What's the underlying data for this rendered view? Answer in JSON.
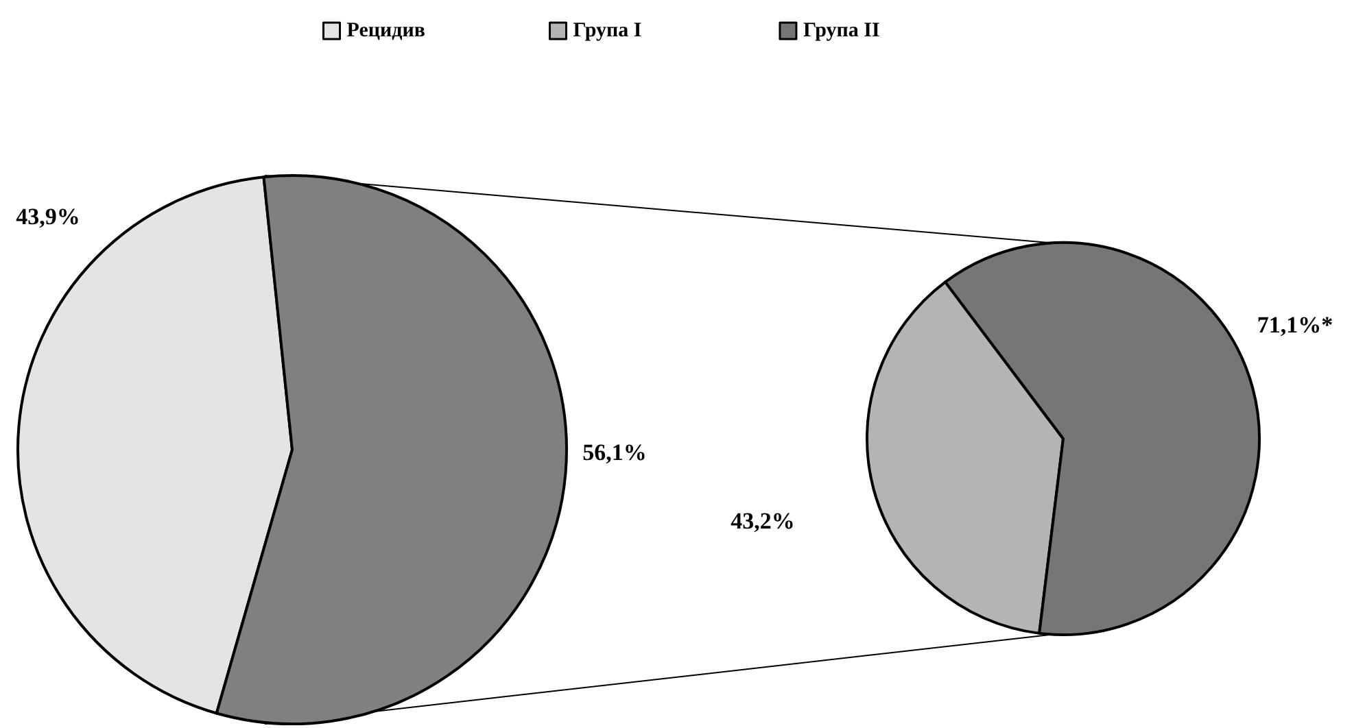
{
  "chart_data": [
    {
      "type": "pie",
      "categories": [
        "Рецидив",
        null
      ],
      "values": [
        43.9,
        56.1
      ],
      "colors": [
        "#e4e4e4",
        "#808080"
      ],
      "value_labels": [
        "43,9%",
        "56,1%"
      ],
      "legend": "top"
    },
    {
      "type": "pie",
      "categories": [
        "Група I",
        "Група II"
      ],
      "values": [
        43.2,
        71.1
      ],
      "colors": [
        "#b4b4b4",
        "#767676"
      ],
      "value_labels": [
        "43,2%",
        "71,1%*"
      ],
      "legend": "top"
    }
  ]
}
